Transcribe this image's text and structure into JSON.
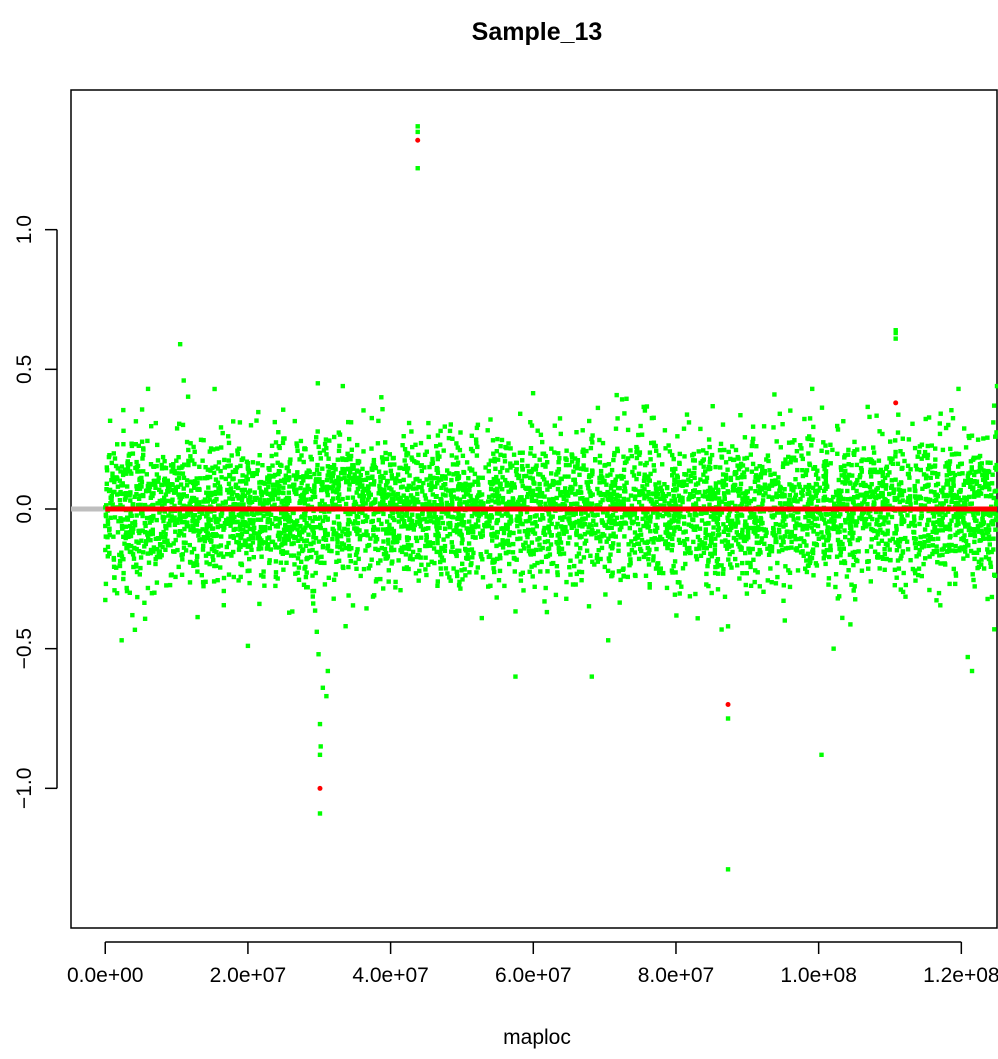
{
  "chart_data": {
    "type": "scatter",
    "title": "Sample_13",
    "xlabel": "maploc",
    "ylabel": "",
    "xlim": [
      -4800000,
      125000000
    ],
    "ylim": [
      -1.5,
      1.5
    ],
    "x_ticks": [
      0,
      20000000,
      40000000,
      60000000,
      80000000,
      100000000,
      120000000
    ],
    "x_tick_labels": [
      "0.0e+00",
      "2.0e+07",
      "4.0e+07",
      "6.0e+07",
      "8.0e+07",
      "1.0e+08",
      "1.2e+08"
    ],
    "y_ticks": [
      -1.0,
      -0.5,
      0.0,
      0.5,
      1.0
    ],
    "y_tick_labels": [
      "−1.0",
      "−0.5",
      "0.0",
      "0.5",
      "1.0"
    ],
    "reference_line": {
      "y": 0.0,
      "color": "#bebebe"
    },
    "segment_line": {
      "x_start": 0,
      "x_end": 125000000,
      "y": 0.0,
      "color": "#ff0000"
    },
    "bulk_noise": {
      "color": "#00ff00",
      "n_points": 5200,
      "x_range": [
        0,
        125000000
      ],
      "mean": 0.0,
      "sd": 0.13,
      "y_clip": [
        -0.48,
        0.44
      ]
    },
    "series": [
      {
        "color": "#00ff00",
        "marker": "square",
        "x": [
          10500000,
          6000000,
          43800000,
          43800000,
          43800000,
          29800000,
          30100000,
          30200000,
          30100000,
          30500000,
          31000000,
          31200000,
          30100000,
          87300000,
          87300000,
          110800000,
          110800000,
          110800000,
          100400000,
          87300000,
          57500000,
          68200000,
          120900000,
          121500000,
          2300000,
          20000000,
          3800000,
          125000000,
          124600000,
          29900000,
          33300000,
          38700000,
          93800000,
          99100000,
          102100000,
          70500000,
          11000000
        ],
        "y": [
          0.59,
          0.43,
          1.37,
          1.35,
          1.22,
          0.45,
          -0.77,
          -0.85,
          -0.88,
          -0.64,
          -0.67,
          -0.58,
          -1.09,
          -0.75,
          -1.29,
          0.64,
          0.63,
          0.61,
          -0.88,
          -0.42,
          -0.6,
          -0.6,
          -0.53,
          -0.58,
          -0.47,
          -0.49,
          -0.38,
          0.44,
          0.37,
          -0.52,
          0.44,
          0.4,
          0.41,
          0.43,
          -0.5,
          -0.47,
          0.46
        ]
      },
      {
        "color": "#ff0000",
        "marker": "dot",
        "x": [
          43800000,
          30100000,
          87300000,
          110800000
        ],
        "y": [
          1.32,
          -1.0,
          -0.7,
          0.38
        ]
      }
    ]
  }
}
